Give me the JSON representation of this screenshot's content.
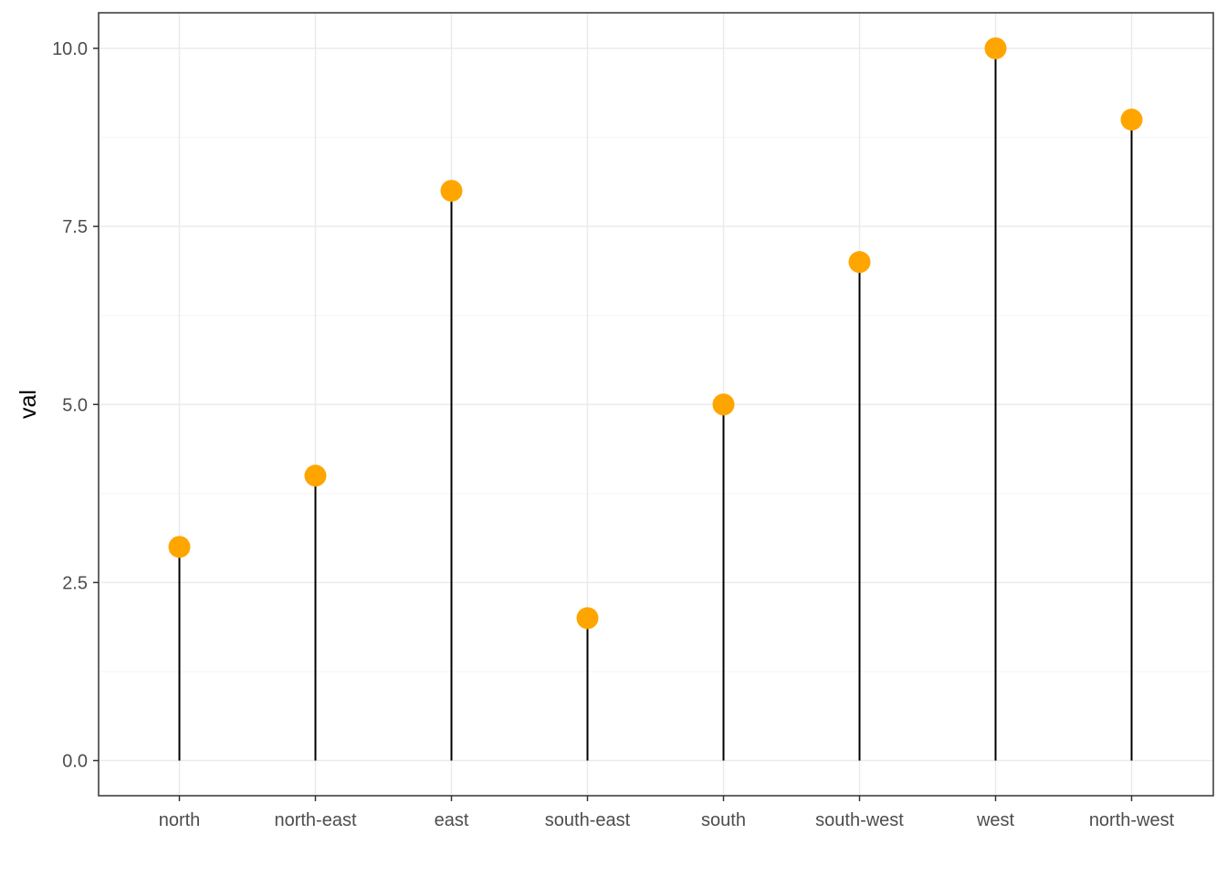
{
  "chart_data": {
    "type": "lollipop",
    "categories": [
      "north",
      "north-east",
      "east",
      "south-east",
      "south",
      "south-west",
      "west",
      "north-west"
    ],
    "values": [
      3,
      4,
      8,
      2,
      5,
      7,
      10,
      9
    ],
    "xlabel": "",
    "ylabel": "val",
    "ylim": [
      -0.5,
      10.5
    ],
    "y_ticks": [
      0,
      2.5,
      5,
      7.5,
      10
    ],
    "y_tick_labels": [
      "0.0",
      "2.5",
      "5.0",
      "7.5",
      "10.0"
    ],
    "grid": true,
    "theme": "bw",
    "colors": {
      "point": "#FFA500",
      "stem": "#000000",
      "grid_major": "#EBEBEB",
      "grid_minor": "#F5F5F5",
      "panel_border": "#333333"
    }
  }
}
